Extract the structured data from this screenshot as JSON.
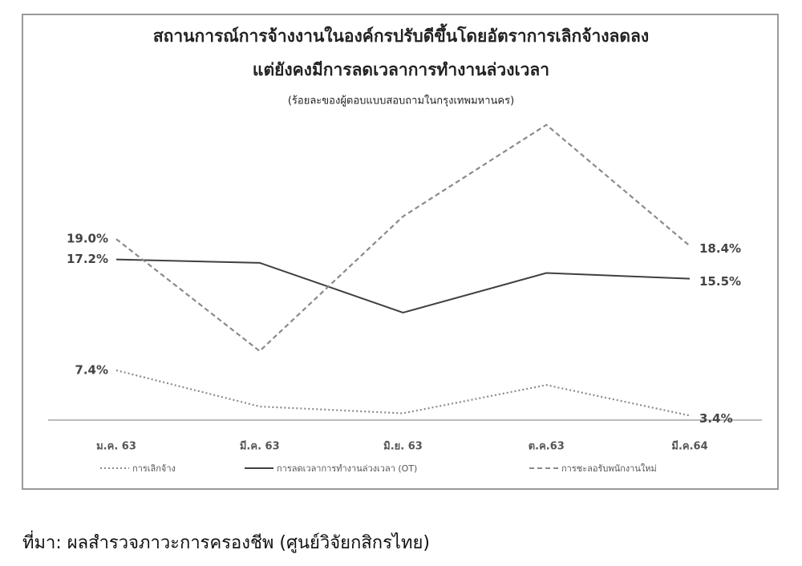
{
  "chart_data": {
    "type": "line",
    "title": [
      "สถานการณ์การจ้างงานในองค์กรปรับดีขึ้นโดยอัตราการเลิกจ้างลดลง",
      "แต่ยังคงมีการลดเวลาการทำงานล่วงเวลา"
    ],
    "subtitle": "(ร้อยละของผู้ตอบแบบสอบถามในกรุงเทพมหานคร)",
    "categories": [
      "ม.ค. 63",
      "มี.ค. 63",
      "มิ.ย. 63",
      "ต.ค.63",
      "มี.ค.64"
    ],
    "ylim": [
      3,
      30
    ],
    "series": [
      {
        "name": "การเลิกจ้าง",
        "color": "#8a8a8a",
        "dash": "dotted",
        "values": [
          7.4,
          4.2,
          3.6,
          6.1,
          3.4
        ],
        "value_labels": [
          "7.4%",
          null,
          null,
          null,
          "3.4%"
        ]
      },
      {
        "name": "การลดเวลาการทำงานล่วงเวลา (OT)",
        "color": "#404040",
        "dash": "solid",
        "values": [
          17.2,
          16.9,
          12.5,
          16.0,
          15.5
        ],
        "value_labels": [
          "17.2%",
          null,
          null,
          null,
          "15.5%"
        ]
      },
      {
        "name": "การชะลอรับพนักงานใหม่",
        "color": "#8a8a8a",
        "dash": "dashed",
        "values": [
          19.0,
          9.1,
          21.0,
          29.1,
          18.4
        ],
        "value_labels": [
          "19.0%",
          null,
          null,
          null,
          "18.4%"
        ]
      }
    ],
    "source": "ที่มา: ผลสำรวจภาวะการครองชีพ (ศูนย์วิจัยกสิกรไทย)"
  }
}
